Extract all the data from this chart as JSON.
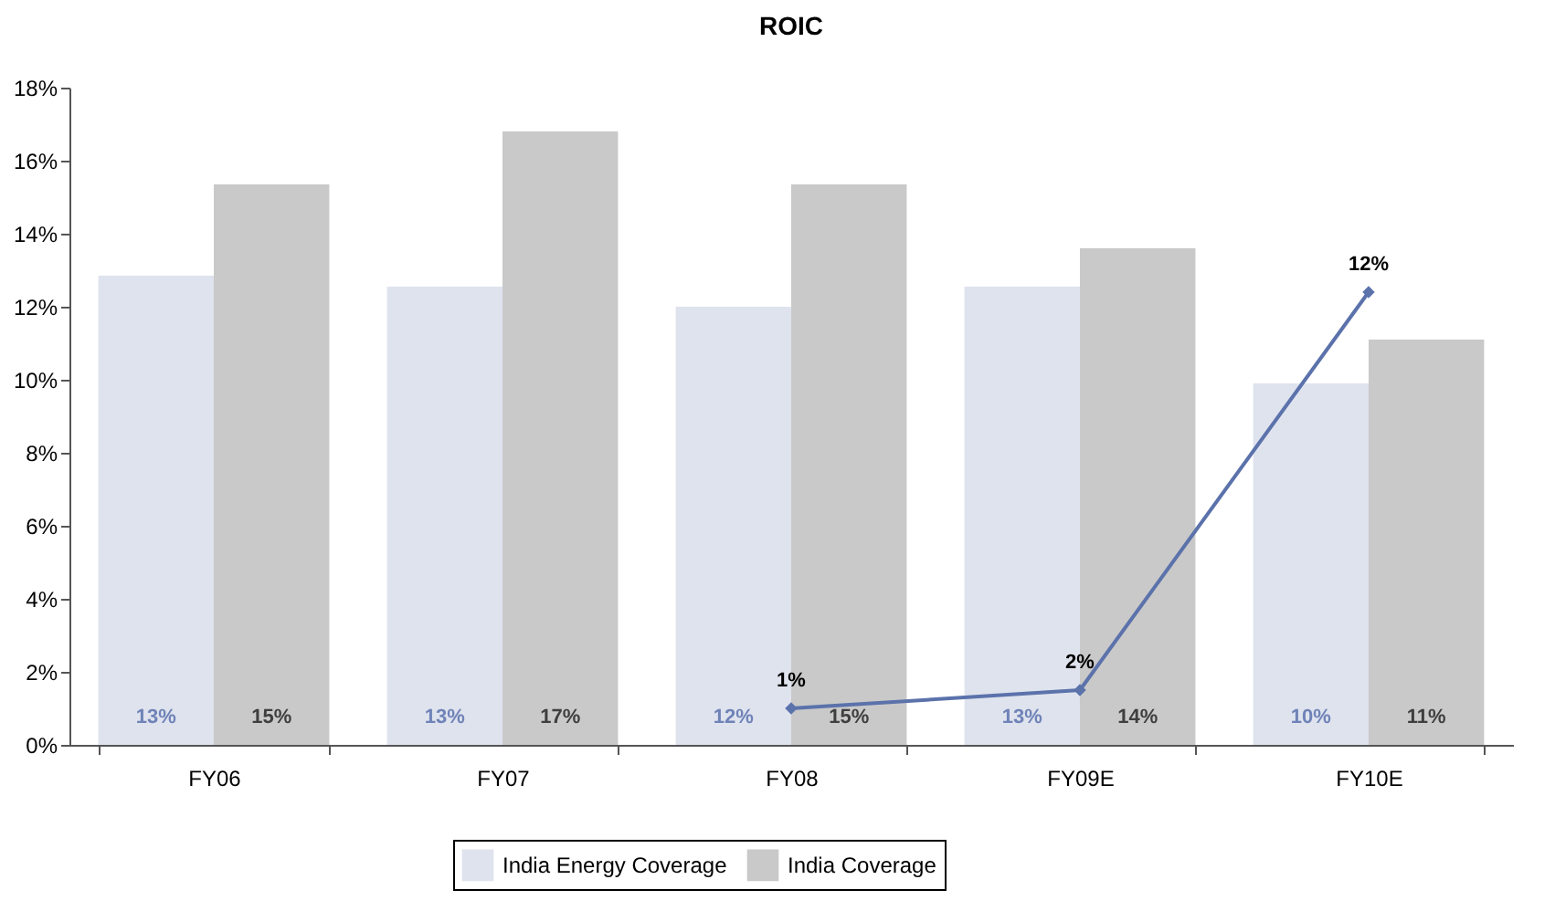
{
  "chart_data": {
    "type": "bar",
    "title": "ROIC",
    "categories": [
      "FY06",
      "FY07",
      "FY08",
      "FY09E",
      "FY10E"
    ],
    "series": [
      {
        "name": "India Energy Coverage",
        "color": "#dfe3ee",
        "values": [
          12.85,
          12.55,
          12.0,
          12.55,
          9.9
        ],
        "value_labels": [
          "13%",
          "13%",
          "12%",
          "13%",
          "10%"
        ]
      },
      {
        "name": "India Coverage",
        "color": "#c9c9c9",
        "values": [
          15.35,
          16.8,
          15.35,
          13.6,
          11.1
        ],
        "value_labels": [
          "15%",
          "17%",
          "15%",
          "14%",
          "11%"
        ]
      },
      {
        "type": "line",
        "color": "#5b72ab",
        "values": [
          null,
          null,
          1.0,
          1.5,
          12.4
        ],
        "value_labels": [
          null,
          null,
          "1%",
          "2%",
          "12%"
        ]
      }
    ],
    "ylim": [
      0,
      18
    ],
    "yticks": [
      {
        "value": 0,
        "label": "0%"
      },
      {
        "value": 2,
        "label": "2%"
      },
      {
        "value": 4,
        "label": "4%"
      },
      {
        "value": 6,
        "label": "6%"
      },
      {
        "value": 8,
        "label": "8%"
      },
      {
        "value": 10,
        "label": "10%"
      },
      {
        "value": 12,
        "label": "12%"
      },
      {
        "value": 14,
        "label": "14%"
      },
      {
        "value": 16,
        "label": "16%"
      },
      {
        "value": 18,
        "label": "18%"
      }
    ],
    "grid": false,
    "legend": "bottom",
    "marker": "diamond"
  }
}
